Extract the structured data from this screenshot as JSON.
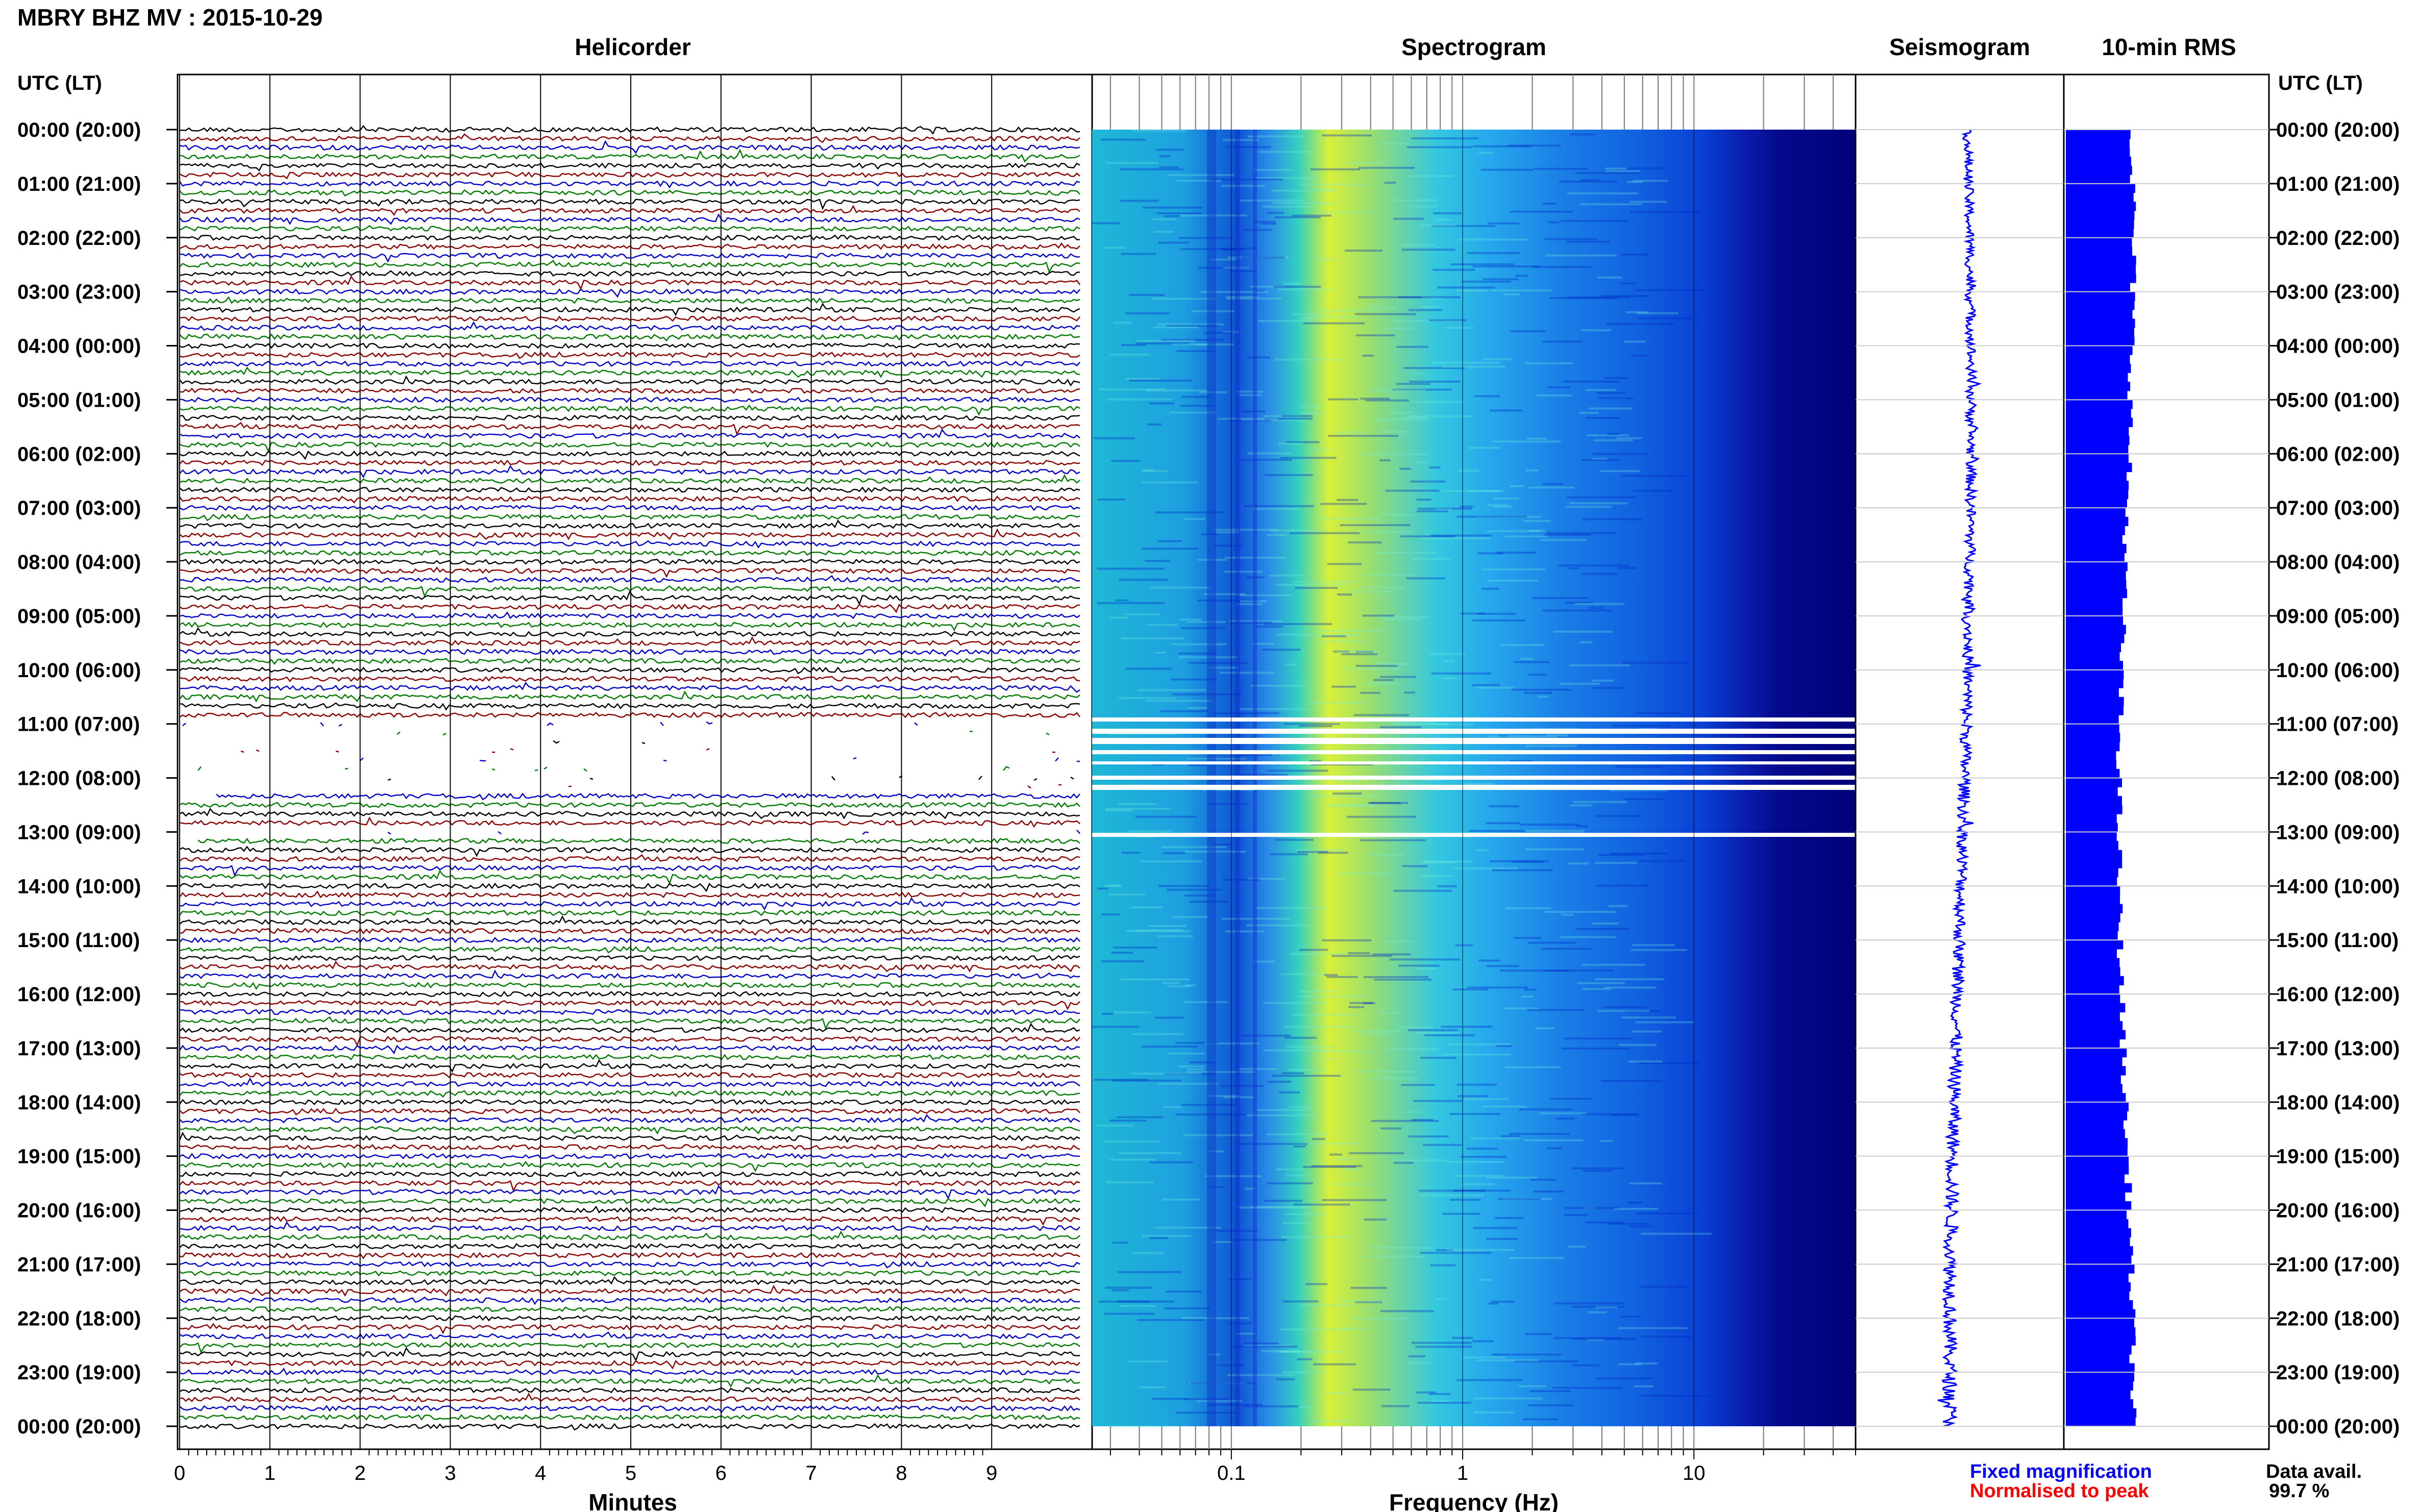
{
  "header": {
    "station_title": "MBRY BHZ MV : 2015-10-29",
    "utc_label_left": "UTC (LT)",
    "utc_label_right": "UTC (LT)"
  },
  "panels": {
    "helicorder_title": "Helicorder",
    "spectrogram_title": "Spectrogram",
    "seismogram_title": "Seismogram",
    "rms_title": "10-min RMS"
  },
  "time_labels": [
    "00:00 (20:00)",
    "01:00 (21:00)",
    "02:00 (22:00)",
    "03:00 (23:00)",
    "04:00 (00:00)",
    "05:00 (01:00)",
    "06:00 (02:00)",
    "07:00 (03:00)",
    "08:00 (04:00)",
    "09:00 (05:00)",
    "10:00 (06:00)",
    "11:00 (07:00)",
    "12:00 (08:00)",
    "13:00 (09:00)",
    "14:00 (10:00)",
    "15:00 (11:00)",
    "16:00 (12:00)",
    "17:00 (13:00)",
    "18:00 (14:00)",
    "19:00 (15:00)",
    "20:00 (16:00)",
    "21:00 (17:00)",
    "22:00 (18:00)",
    "23:00 (19:00)",
    "00:00 (20:00)"
  ],
  "legend": {
    "fixed": "Fixed magnification",
    "normalised": "Normalised to peak",
    "data_avail_label": "Data avail.",
    "data_avail_value": "99.7 %"
  },
  "colors": {
    "trace_cycle": [
      "#000000",
      "#8b0000",
      "#0000cc",
      "#007a00"
    ],
    "fixed_magnification": "#0000ff",
    "normalised_to_peak": "#ff0000",
    "rms_fill": "#0000ff",
    "spectrogram_high": "#e8ff30",
    "spectrogram_low": "#00007a"
  },
  "chart_data": [
    {
      "type": "line",
      "panel": "Helicorder",
      "xlabel": "Minutes",
      "x_ticks": [
        "0",
        "1",
        "2",
        "3",
        "4",
        "5",
        "6",
        "7",
        "8",
        "9"
      ],
      "xlim": [
        0,
        10
      ],
      "rows_per_hour": 6,
      "hours": 24,
      "gaps_utc": [
        "11:00-12:20",
        "13:00-13:10"
      ]
    },
    {
      "type": "heatmap",
      "panel": "Spectrogram",
      "xlabel": "Frequency (Hz)",
      "x_scale": "log",
      "x_ticks": [
        "0.1",
        "1",
        "10"
      ],
      "xlim": [
        0.025,
        50
      ],
      "peak_frequency_hz": 0.25,
      "gaps_utc": [
        "11:00-12:00",
        "13:00"
      ]
    },
    {
      "type": "line",
      "panel": "Seismogram",
      "normalisation": "Fixed magnification"
    },
    {
      "type": "bar",
      "panel": "10-min RMS",
      "bins_per_hour": 6
    }
  ]
}
